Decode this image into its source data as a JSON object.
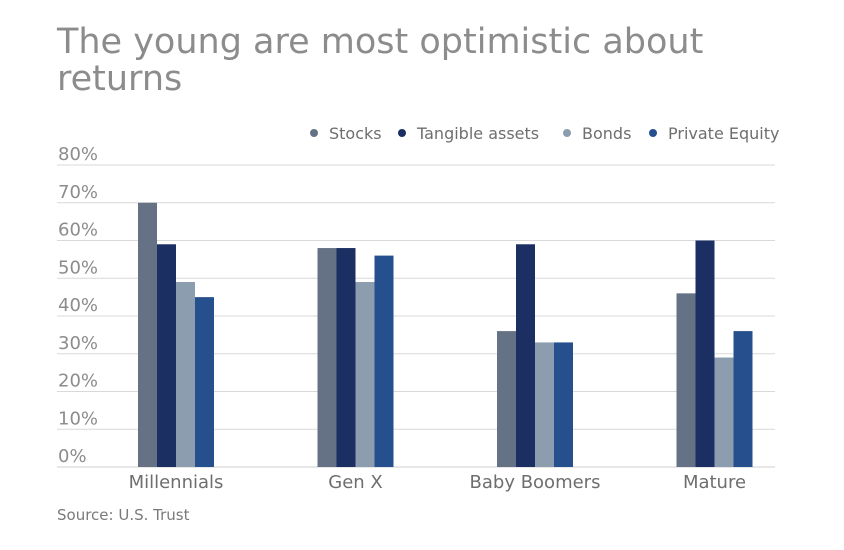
{
  "chart_data": {
    "type": "bar",
    "title": "The young are most optimistic about returns",
    "source": "Source: U.S. Trust",
    "xlabel": "",
    "ylabel": "",
    "ylim": [
      0,
      80
    ],
    "ytick_step": 10,
    "ytick_suffix": "%",
    "grid": true,
    "legend_position": "top-right",
    "categories": [
      "Millennials",
      "Gen X",
      "Baby Boomers",
      "Mature"
    ],
    "series": [
      {
        "name": "Stocks",
        "color": "#657286",
        "values": [
          70,
          58,
          36,
          46
        ]
      },
      {
        "name": "Tangible assets",
        "color": "#1b2f63",
        "values": [
          59,
          58,
          59,
          60
        ]
      },
      {
        "name": "Bonds",
        "color": "#8c9db0",
        "values": [
          49,
          49,
          33,
          29
        ]
      },
      {
        "name": "Private Equity",
        "color": "#264f8d",
        "values": [
          45,
          56,
          33,
          36
        ]
      }
    ]
  }
}
